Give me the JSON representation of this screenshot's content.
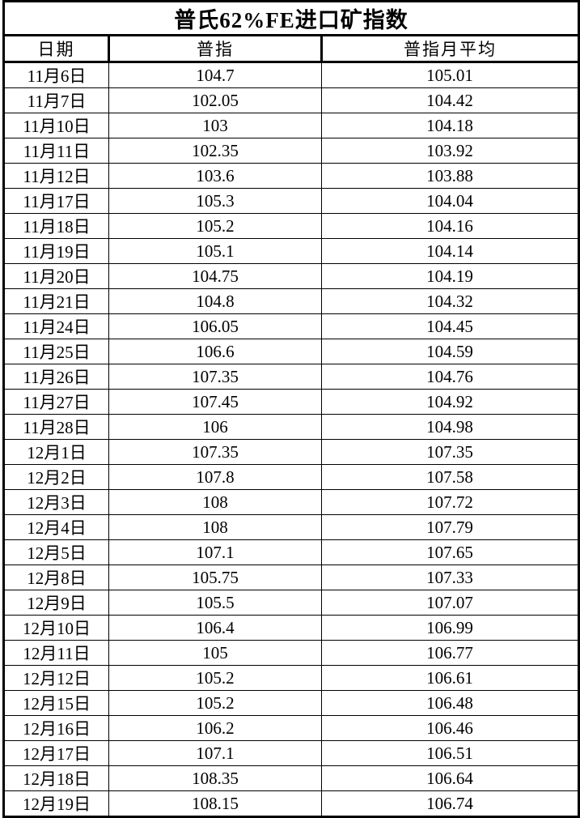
{
  "chart_data": {
    "type": "table",
    "title": "普氏62%FE进口矿指数",
    "columns": [
      "日期",
      "普指",
      "普指月平均"
    ],
    "rows": [
      [
        "11月6日",
        "104.7",
        "105.01"
      ],
      [
        "11月7日",
        "102.05",
        "104.42"
      ],
      [
        "11月10日",
        "103",
        "104.18"
      ],
      [
        "11月11日",
        "102.35",
        "103.92"
      ],
      [
        "11月12日",
        "103.6",
        "103.88"
      ],
      [
        "11月17日",
        "105.3",
        "104.04"
      ],
      [
        "11月18日",
        "105.2",
        "104.16"
      ],
      [
        "11月19日",
        "105.1",
        "104.14"
      ],
      [
        "11月20日",
        "104.75",
        "104.19"
      ],
      [
        "11月21日",
        "104.8",
        "104.32"
      ],
      [
        "11月24日",
        "106.05",
        "104.45"
      ],
      [
        "11月25日",
        "106.6",
        "104.59"
      ],
      [
        "11月26日",
        "107.35",
        "104.76"
      ],
      [
        "11月27日",
        "107.45",
        "104.92"
      ],
      [
        "11月28日",
        "106",
        "104.98"
      ],
      [
        "12月1日",
        "107.35",
        "107.35"
      ],
      [
        "12月2日",
        "107.8",
        "107.58"
      ],
      [
        "12月3日",
        "108",
        "107.72"
      ],
      [
        "12月4日",
        "108",
        "107.79"
      ],
      [
        "12月5日",
        "107.1",
        "107.65"
      ],
      [
        "12月8日",
        "105.75",
        "107.33"
      ],
      [
        "12月9日",
        "105.5",
        "107.07"
      ],
      [
        "12月10日",
        "106.4",
        "106.99"
      ],
      [
        "12月11日",
        "105",
        "106.77"
      ],
      [
        "12月12日",
        "105.2",
        "106.61"
      ],
      [
        "12月15日",
        "105.2",
        "106.48"
      ],
      [
        "12月16日",
        "106.2",
        "106.46"
      ],
      [
        "12月17日",
        "107.1",
        "106.51"
      ],
      [
        "12月18日",
        "108.35",
        "106.64"
      ],
      [
        "12月19日",
        "108.15",
        "106.74"
      ]
    ],
    "series": [
      {
        "name": "普指",
        "values": [
          104.7,
          102.05,
          103,
          102.35,
          103.6,
          105.3,
          105.2,
          105.1,
          104.75,
          104.8,
          106.05,
          106.6,
          107.35,
          107.45,
          106,
          107.35,
          107.8,
          108,
          108,
          107.1,
          105.75,
          105.5,
          106.4,
          105,
          105.2,
          105.2,
          106.2,
          107.1,
          108.35,
          108.15
        ]
      },
      {
        "name": "普指月平均",
        "values": [
          105.01,
          104.42,
          104.18,
          103.92,
          103.88,
          104.04,
          104.16,
          104.14,
          104.19,
          104.32,
          104.45,
          104.59,
          104.76,
          104.92,
          104.98,
          107.35,
          107.58,
          107.72,
          107.79,
          107.65,
          107.33,
          107.07,
          106.99,
          106.77,
          106.61,
          106.48,
          106.46,
          106.51,
          106.64,
          106.74
        ]
      }
    ],
    "colors": {
      "text": "#000000",
      "border": "#000000",
      "background": "#ffffff"
    }
  }
}
